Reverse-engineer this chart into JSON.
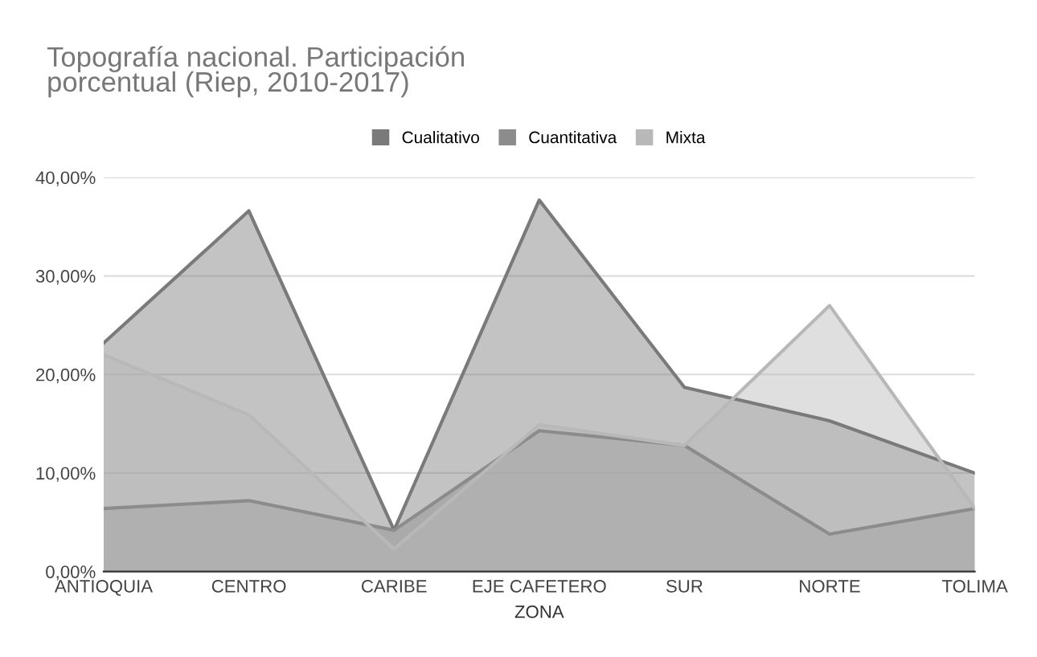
{
  "chart_data": {
    "type": "area",
    "title": "Topografía nacional. Participación\nporcentual (Riep, 2010-2017)",
    "xlabel": "ZONA",
    "categories": [
      "ANTIOQUIA",
      "CENTRO",
      "CARIBE",
      "EJE CAFETERO",
      "SUR",
      "NORTE",
      "TOLIMA"
    ],
    "series": [
      {
        "name": "Cualitativo",
        "color": "#7a7a7a",
        "values": [
          23.2,
          36.6,
          4.2,
          37.7,
          18.7,
          15.3,
          10.0
        ]
      },
      {
        "name": "Cuantitativa",
        "color": "#8c8c8c",
        "values": [
          6.4,
          7.2,
          4.2,
          14.3,
          12.8,
          3.8,
          6.4
        ]
      },
      {
        "name": "Mixta",
        "color": "#b8b8b8",
        "values": [
          22.0,
          15.9,
          2.3,
          14.9,
          12.8,
          27.0,
          6.4
        ]
      }
    ],
    "ylim": [
      0,
      40
    ],
    "yticks": [
      {
        "value": 0,
        "label": "0,00%"
      },
      {
        "value": 10,
        "label": "10,00%"
      },
      {
        "value": 20,
        "label": "20,00%"
      },
      {
        "value": 30,
        "label": "30,00%"
      },
      {
        "value": 40,
        "label": "40,00%"
      }
    ],
    "grid": "y",
    "legend": "top"
  }
}
